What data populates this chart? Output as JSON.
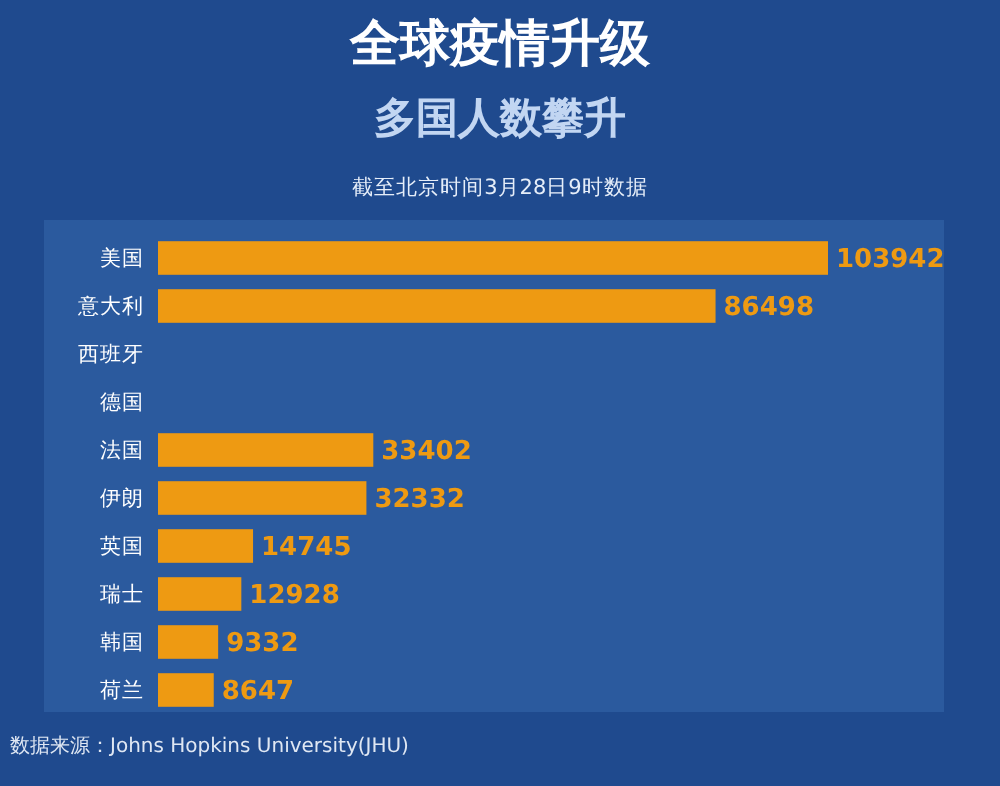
{
  "chart_data": {
    "type": "bar",
    "orientation": "horizontal",
    "title": "全球疫情升级",
    "subtitle": "多国人数攀升",
    "annotations": [
      "截至北京时间3月28日9时数据",
      "数据来源：Johns Hopkins University(JHU)"
    ],
    "categories": [
      "美国",
      "意大利",
      "西班牙",
      "德国",
      "法国",
      "伊朗",
      "英国",
      "瑞士",
      "韩国",
      "荷兰"
    ],
    "values": [
      103942,
      86498,
      null,
      null,
      33402,
      32332,
      14745,
      12928,
      9332,
      8647
    ],
    "color": "#ee9a12",
    "data_labels": true
  }
}
